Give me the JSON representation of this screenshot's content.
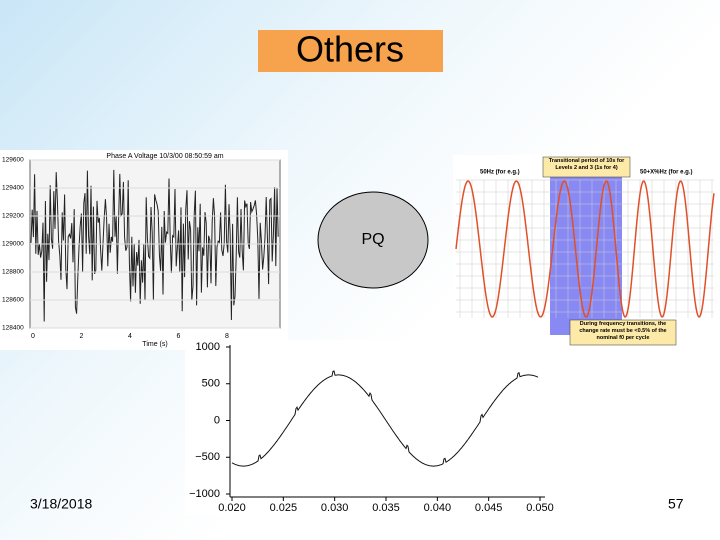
{
  "slide": {
    "title": "Others",
    "center_label": "PQ",
    "date": "3/18/2018",
    "page_number": "57"
  },
  "voltage_figure": {
    "title": "Phase A Voltage 10/3/00 08:50:59 am",
    "x_label": "Time (s)",
    "yticks": [
      "129600",
      "129400",
      "129200",
      "129000",
      "128800",
      "128600",
      "128400"
    ],
    "xticks": [
      "0",
      "2",
      "4",
      "6",
      "8"
    ]
  },
  "frequency_figure": {
    "band_note": "Transitional period of 10s for Levels 2 and 3 (1s for 4)",
    "left_label": "50Hz (for e.g.)",
    "right_label": "50+X%Hz (for e.g.)",
    "bottom_note": "During frequency transitions, the change rate must be <0.5% of the nominal f0 per cycle"
  },
  "waveform_figure": {
    "ylim": [
      -1000,
      1000
    ],
    "xlim": [
      0.02,
      0.05
    ],
    "yticks": [
      1000,
      500,
      0,
      {
        "value": -500,
        "label": "−500"
      },
      {
        "value": -1000,
        "label": "−1000"
      }
    ],
    "xticks": [
      {
        "value": 0.02,
        "label": "0.020"
      },
      {
        "value": 0.025,
        "label": "0.025"
      },
      {
        "value": 0.03,
        "label": "0.030"
      },
      {
        "value": 0.035,
        "label": "0.035"
      },
      {
        "value": 0.04,
        "label": "0.040"
      },
      {
        "value": 0.045,
        "label": "0.045"
      },
      {
        "value": 0.05,
        "label": "0.050"
      }
    ]
  }
}
